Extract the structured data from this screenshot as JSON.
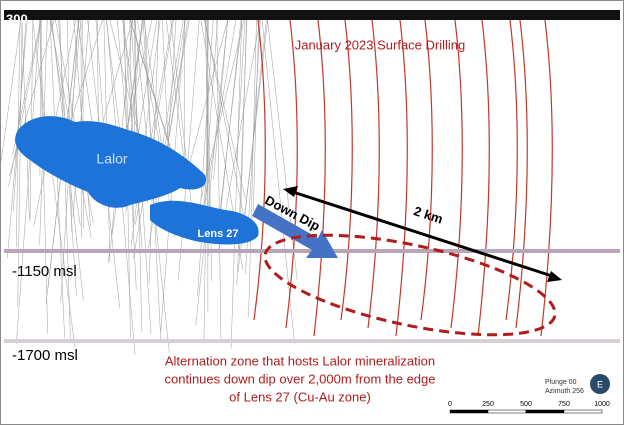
{
  "elevation_top": "300",
  "drilling_label": "January 2023 Surface Drilling",
  "orebodies": {
    "lalor": "Lalor",
    "lens27": "Lens 27"
  },
  "arrow_label": "Down Dip",
  "distance_label": "2 km",
  "levels": [
    "-1150 msl",
    "-1700 msl"
  ],
  "description": [
    "Alternation zone that hosts Lalor mineralization",
    "continues down dip over 2,000m from the edge",
    "of Lens 27 (Cu-Au zone)"
  ],
  "view": {
    "plunge": "Plunge 00",
    "azimuth": "Azimuth 256",
    "compass": "E"
  },
  "scale_bar": [
    "0",
    "250",
    "500",
    "750",
    "1000"
  ]
}
